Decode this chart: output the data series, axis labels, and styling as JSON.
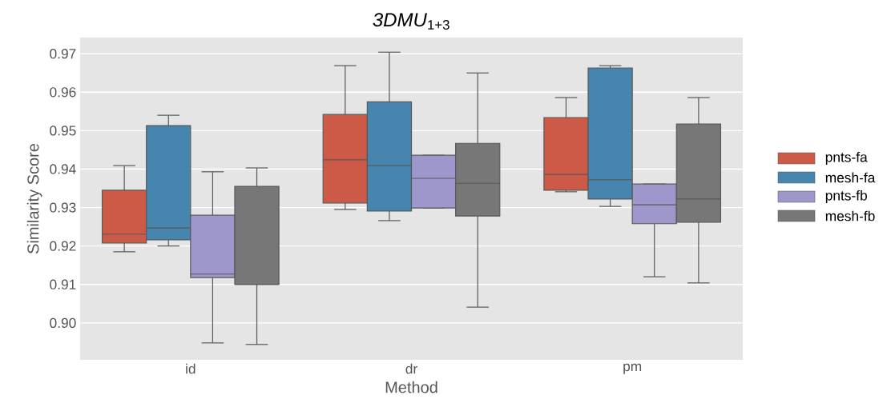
{
  "chart_data": {
    "type": "box",
    "title": "*3DMU*$_{1+3}$",
    "xlabel": "Method",
    "ylabel": "Similarity Score",
    "categories": [
      "id",
      "dr",
      "pm"
    ],
    "series": [
      {
        "name": "pnts-fa",
        "color": "#cc5a47",
        "boxes": [
          {
            "low": 0.9185,
            "q1": 0.9208,
            "median": 0.9231,
            "q3": 0.9345,
            "high": 0.9409
          },
          {
            "low": 0.9295,
            "q1": 0.9312,
            "median": 0.9424,
            "q3": 0.9542,
            "high": 0.9669
          },
          {
            "low": 0.9341,
            "q1": 0.9345,
            "median": 0.9386,
            "q3": 0.9534,
            "high": 0.9586
          }
        ]
      },
      {
        "name": "mesh-fa",
        "color": "#4686ae",
        "boxes": [
          {
            "low": 0.92,
            "q1": 0.9216,
            "median": 0.9247,
            "q3": 0.9513,
            "high": 0.954
          },
          {
            "low": 0.9266,
            "q1": 0.9291,
            "median": 0.9409,
            "q3": 0.9575,
            "high": 0.9704
          },
          {
            "low": 0.9303,
            "q1": 0.9322,
            "median": 0.9372,
            "q3": 0.9663,
            "high": 0.9669
          }
        ]
      },
      {
        "name": "pnts-fb",
        "color": "#9e97cc",
        "boxes": [
          {
            "low": 0.8948,
            "q1": 0.9118,
            "median": 0.9127,
            "q3": 0.928,
            "high": 0.9393
          },
          {
            "low": 0.9299,
            "q1": 0.9299,
            "median": 0.9376,
            "q3": 0.9436,
            "high": 0.9436
          },
          {
            "low": 0.912,
            "q1": 0.9258,
            "median": 0.9307,
            "q3": 0.9361,
            "high": 0.9361
          }
        ]
      },
      {
        "name": "mesh-fb",
        "color": "#777777",
        "boxes": [
          {
            "low": 0.8944,
            "q1": 0.91,
            "median": 0.91,
            "q3": 0.9355,
            "high": 0.9403
          },
          {
            "low": 0.9041,
            "q1": 0.9278,
            "median": 0.9363,
            "q3": 0.9467,
            "high": 0.965
          },
          {
            "low": 0.9104,
            "q1": 0.9262,
            "median": 0.9322,
            "q3": 0.9517,
            "high": 0.9586
          }
        ]
      }
    ],
    "ylim": [
      0.8904,
      0.9742
    ],
    "yticks": [
      {
        "value": 0.9,
        "label": "0.90"
      },
      0.91,
      0.92,
      0.93,
      0.94,
      0.95,
      0.96,
      0.97
    ],
    "grid": "y",
    "legend": "right"
  }
}
